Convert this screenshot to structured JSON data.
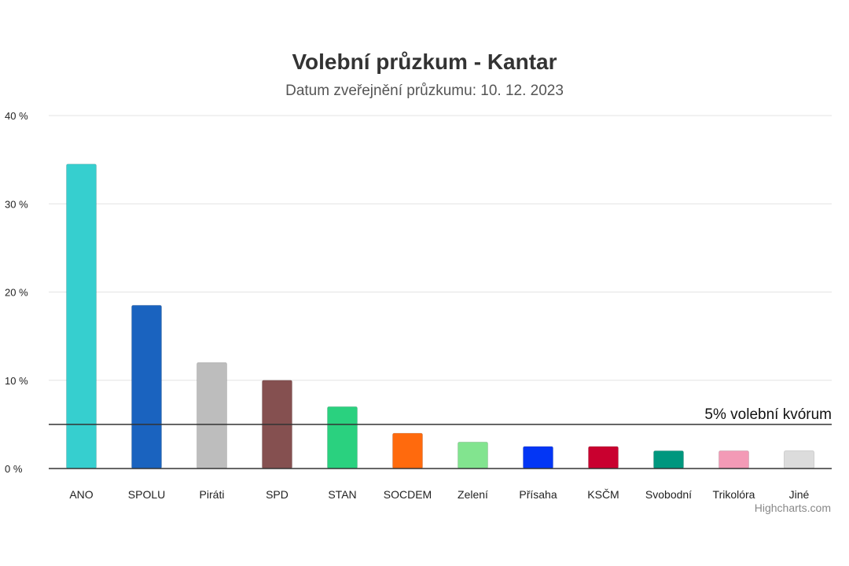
{
  "chart_data": {
    "type": "bar",
    "title": "Volební průzkum - Kantar",
    "subtitle": "Datum zveřejnění průzkumu: 10. 12. 2023",
    "xlabel": "",
    "ylabel": "",
    "ylim": [
      0,
      40
    ],
    "yticks": [
      0,
      10,
      20,
      30,
      40
    ],
    "ytick_suffix": " %",
    "grid": true,
    "legend": "none",
    "categories": [
      "ANO",
      "SPOLU",
      "Piráti",
      "SPD",
      "STAN",
      "SOCDEM",
      "Zelení",
      "Přísaha",
      "KSČM",
      "Svobodní",
      "Trikolóra",
      "Jiné"
    ],
    "values": [
      34.5,
      18.5,
      12,
      10,
      7,
      4,
      3,
      2.5,
      2.5,
      2,
      2,
      2
    ],
    "colors": [
      "#36cfcf",
      "#1a63bf",
      "#bdbdbd",
      "#855050",
      "#2ad17f",
      "#ff6a0d",
      "#82e48f",
      "#0336f5",
      "#c9002f",
      "#00977e",
      "#f39ab6",
      "#dcdcdc"
    ],
    "reference_line": {
      "value": 5,
      "label": "5% volební kvórum"
    },
    "credit": "Highcharts.com"
  }
}
